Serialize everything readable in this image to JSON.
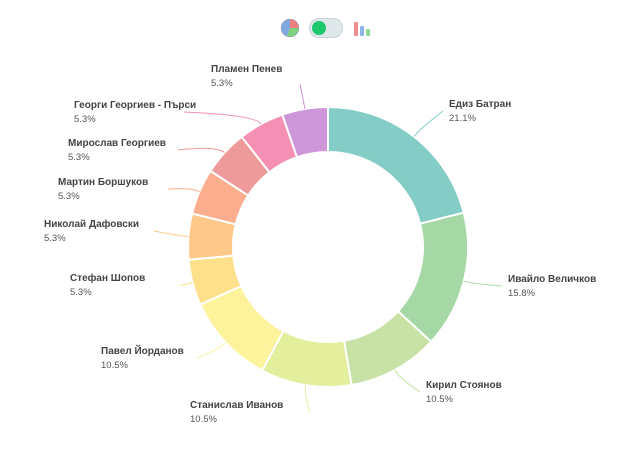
{
  "toolbar": {
    "pie_icon": "pie-chart-icon",
    "toggle_icon": "toggle-switch-icon",
    "bar_icon": "bar-chart-icon",
    "toggle_color": "#1ec86c"
  },
  "chart_data": {
    "type": "pie",
    "variant": "donut",
    "title": "",
    "slices": [
      {
        "name": "Едиз Батран",
        "label": "21.1%",
        "value": 21.1,
        "color": "#84cdc6"
      },
      {
        "name": "Ивайло Величков",
        "label": "15.8%",
        "value": 15.8,
        "color": "#a6d8a6"
      },
      {
        "name": "Кирил Стоянов",
        "label": "10.5%",
        "value": 10.5,
        "color": "#c7e2a4"
      },
      {
        "name": "Станислав Иванов",
        "label": "10.5%",
        "value": 10.5,
        "color": "#e4ef9e"
      },
      {
        "name": "Павел Йорданов",
        "label": "10.5%",
        "value": 10.5,
        "color": "#fdf39c"
      },
      {
        "name": "Стефан Шопов",
        "label": "5.3%",
        "value": 5.3,
        "color": "#fde08c"
      },
      {
        "name": "Николай Дафовски",
        "label": "5.3%",
        "value": 5.3,
        "color": "#fdc889"
      },
      {
        "name": "Мартин Боршуков",
        "label": "5.3%",
        "value": 5.3,
        "color": "#fcad8e"
      },
      {
        "name": "Мирослав Георгиев",
        "label": "5.3%",
        "value": 5.3,
        "color": "#ee9a9a"
      },
      {
        "name": "Георги Георгиев - Пърси",
        "label": "5.3%",
        "value": 5.3,
        "color": "#f590b4"
      },
      {
        "name": "Пламен Пенев",
        "label": "5.3%",
        "value": 5.3,
        "color": "#cc96d8"
      }
    ]
  }
}
